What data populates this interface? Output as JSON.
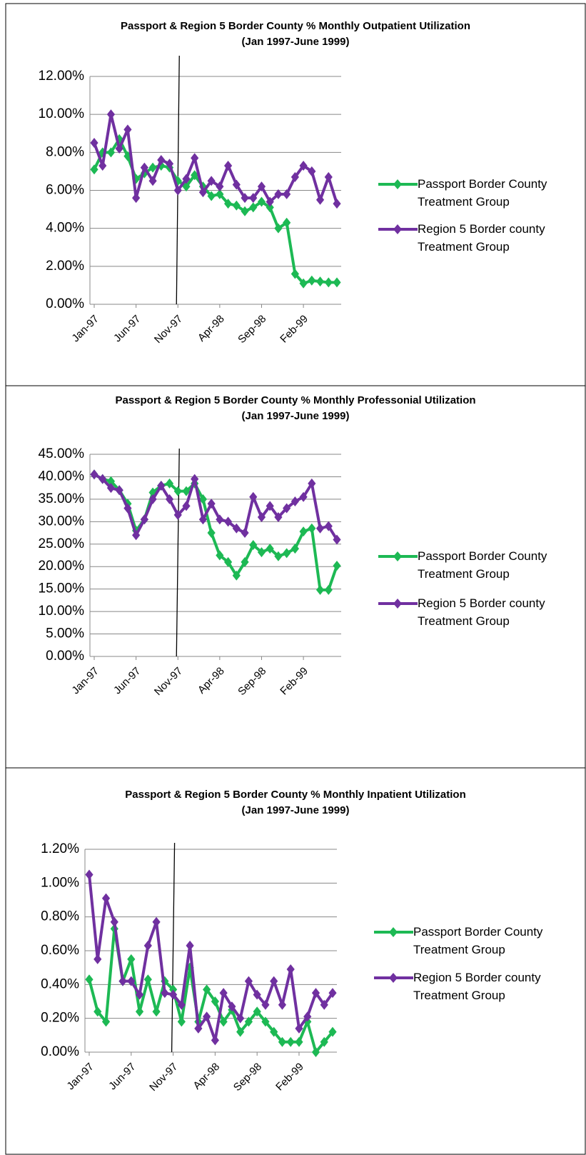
{
  "chart_data": [
    {
      "type": "line",
      "title": "Passport & Region 5 Border County % Monthly Outpatient Utilization",
      "subtitle": "(Jan 1997-June 1999)",
      "categories": [
        "Jan-97",
        null,
        null,
        null,
        null,
        "Jun-97",
        null,
        null,
        null,
        null,
        "Nov-97",
        null,
        null,
        null,
        null,
        "Apr-98",
        null,
        null,
        null,
        null,
        "Sep-98",
        null,
        null,
        null,
        null,
        "Feb-99",
        null,
        null,
        null,
        null
      ],
      "series": [
        {
          "name": "Passport Border County Treatment Group",
          "color": "#1db954",
          "values": [
            7.1,
            8.0,
            8.0,
            8.7,
            7.8,
            6.6,
            6.9,
            7.2,
            7.3,
            7.2,
            6.5,
            6.2,
            6.8,
            6.2,
            5.7,
            5.8,
            5.3,
            5.2,
            4.9,
            5.1,
            5.4,
            5.1,
            4.0,
            4.3,
            1.6,
            1.1,
            1.25,
            1.2,
            1.15,
            1.15
          ]
        },
        {
          "name": "Region 5 Border county Treatment Group",
          "color": "#7030a0",
          "values": [
            8.5,
            7.3,
            10.0,
            8.2,
            9.2,
            5.6,
            7.2,
            6.5,
            7.6,
            7.4,
            6.0,
            6.6,
            7.7,
            5.9,
            6.5,
            6.2,
            7.3,
            6.3,
            5.6,
            5.6,
            6.2,
            5.4,
            5.8,
            5.8,
            6.7,
            7.3,
            7.0,
            5.5,
            6.7,
            5.3
          ]
        }
      ],
      "ylim": [
        0,
        12
      ],
      "yticks": [
        {
          "value": 0,
          "label": "0.00%"
        },
        {
          "value": 2,
          "label": "2.00%"
        },
        {
          "value": 4,
          "label": "4.00%"
        },
        {
          "value": 6,
          "label": "6.00%"
        },
        {
          "value": 8,
          "label": "8.00%"
        },
        {
          "value": 10,
          "label": "10.00%"
        },
        {
          "value": 12,
          "label": "12.00%"
        }
      ],
      "grid": true,
      "legend": "right"
    },
    {
      "type": "line",
      "title": "Passport & Region 5 Border County % Monthly Professonial Utilization",
      "subtitle": "(Jan 1997-June 1999)",
      "categories": [
        "Jan-97",
        null,
        null,
        null,
        null,
        "Jun-97",
        null,
        null,
        null,
        null,
        "Nov-97",
        null,
        null,
        null,
        null,
        "Apr-98",
        null,
        null,
        null,
        null,
        "Sep-98",
        null,
        null,
        null,
        null,
        "Feb-99",
        null,
        null,
        null,
        null
      ],
      "series": [
        {
          "name": "Passport Border County Treatment Group",
          "color": "#1db954",
          "values": [
            40.5,
            39.5,
            39.0,
            37.0,
            34.0,
            28.0,
            30.5,
            36.5,
            38.0,
            38.5,
            36.8,
            36.8,
            38.5,
            35.0,
            27.5,
            22.5,
            21.0,
            18.0,
            21.0,
            24.8,
            23.2,
            24.0,
            22.3,
            23.0,
            24.0,
            27.8,
            28.5,
            14.8,
            14.8,
            20.2
          ]
        },
        {
          "name": "Region 5 Border county Treatment Group",
          "color": "#7030a0",
          "values": [
            40.5,
            39.5,
            37.5,
            37.0,
            33.0,
            27.0,
            30.5,
            35.0,
            38.0,
            35.0,
            31.5,
            33.5,
            39.5,
            30.5,
            34.0,
            30.5,
            30.0,
            28.5,
            27.5,
            35.5,
            31.0,
            33.5,
            31.0,
            33.0,
            34.5,
            35.5,
            38.5,
            28.5,
            29.0,
            26.0
          ]
        }
      ],
      "ylim": [
        0,
        45
      ],
      "yticks": [
        {
          "value": 0,
          "label": "0.00%"
        },
        {
          "value": 5,
          "label": "5.00%"
        },
        {
          "value": 10,
          "label": "10.00%"
        },
        {
          "value": 15,
          "label": "15.00%"
        },
        {
          "value": 20,
          "label": "20.00%"
        },
        {
          "value": 25,
          "label": "25.00%"
        },
        {
          "value": 30,
          "label": "30.00%"
        },
        {
          "value": 35,
          "label": "35.00%"
        },
        {
          "value": 40,
          "label": "40.00%"
        },
        {
          "value": 45,
          "label": "45.00%"
        }
      ],
      "grid": true,
      "legend": "right"
    },
    {
      "type": "line",
      "title": "Passport & Region 5 Border County % Monthly Inpatient Utilization",
      "subtitle": "(Jan 1997-June 1999)",
      "categories": [
        "Jan-97",
        null,
        null,
        null,
        null,
        "Jun-97",
        null,
        null,
        null,
        null,
        "Nov-97",
        null,
        null,
        null,
        null,
        "Apr-98",
        null,
        null,
        null,
        null,
        "Sep-98",
        null,
        null,
        null,
        null,
        "Feb-99",
        null,
        null,
        null,
        null
      ],
      "series": [
        {
          "name": "Passport Border County Treatment Group",
          "color": "#1db954",
          "values": [
            0.43,
            0.24,
            0.18,
            0.73,
            0.42,
            0.55,
            0.24,
            0.43,
            0.24,
            0.42,
            0.37,
            0.18,
            0.5,
            0.18,
            0.37,
            0.3,
            0.18,
            0.25,
            0.12,
            0.18,
            0.24,
            0.18,
            0.12,
            0.06,
            0.06,
            0.06,
            0.18,
            0,
            0.06,
            0.12
          ]
        },
        {
          "name": "Region 5 Border county Treatment Group",
          "color": "#7030a0",
          "values": [
            1.05,
            0.55,
            0.91,
            0.77,
            0.42,
            0.42,
            0.34,
            0.63,
            0.77,
            0.35,
            0.34,
            0.28,
            0.63,
            0.14,
            0.21,
            0.07,
            0.35,
            0.27,
            0.2,
            0.42,
            0.34,
            0.28,
            0.42,
            0.28,
            0.49,
            0.14,
            0.21,
            0.35,
            0.28,
            0.35
          ]
        }
      ],
      "ylim": [
        0,
        1.2
      ],
      "yticks": [
        {
          "value": 0,
          "label": "0.00%"
        },
        {
          "value": 0.2,
          "label": "0.20%"
        },
        {
          "value": 0.4,
          "label": "0.40%"
        },
        {
          "value": 0.6,
          "label": "0.60%"
        },
        {
          "value": 0.8,
          "label": "0.80%"
        },
        {
          "value": 1.0,
          "label": "1.00%"
        },
        {
          "value": 1.2,
          "label": "1.20%"
        }
      ],
      "grid": true,
      "legend": "right"
    }
  ]
}
